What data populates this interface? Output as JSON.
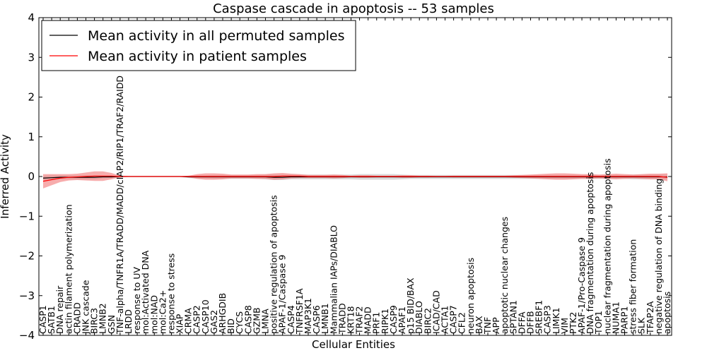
{
  "chart_data": {
    "type": "line",
    "title": "Caspase cascade in apoptosis -- 53 samples",
    "xlabel": "Cellular Entities",
    "ylabel": "Inferred Activity",
    "ylim": [
      -4,
      4
    ],
    "yticks": [
      -4,
      -3,
      -2,
      -1,
      0,
      1,
      2,
      3,
      4
    ],
    "ytick_labels": [
      "−4",
      "−3",
      "−2",
      "−1",
      "0",
      "1",
      "2",
      "3",
      "4"
    ],
    "grid": false,
    "legend_position": "top-left",
    "categories": [
      "CASP1",
      "SATB1",
      "DNA repair",
      "actin filament polymerization",
      "CRADD",
      "JNK cascade",
      "BIRC3",
      "LMNB2",
      "GSN",
      "TNF-alpha/TNFR1A/TRADD/MADD/cIAP2/RIP1/TRAF2/RAIDD",
      "LRDD",
      "response to UV",
      "mol:Activated DNA",
      "mol:NAD",
      "mol:Ca2+",
      "response to stress",
      "XIAP",
      "CRMA",
      "CASP2",
      "CASP10",
      "GAS2",
      "ARHGDIB",
      "BID",
      "CYCS",
      "CASP8",
      "GZMB",
      "LMNA",
      "positive regulation of apoptosis",
      "APAF-1/Caspase 9",
      "CASP4",
      "TNFRSF1A",
      "MAP3K1",
      "CASP6",
      "LMNB1",
      "Mammalian IAPs/DIABLO",
      "TRADD",
      "KRT18",
      "TRAF2",
      "MADD",
      "PRF1",
      "RIPK1",
      "CASP9",
      "APAF1",
      "p15 BID/BAX",
      "DIABLO",
      "BIRC2",
      "ICAD/CAD",
      "ACTA1",
      "CASP7",
      "CFL2",
      "neuron apoptosis",
      "BAX",
      "TNF",
      "APP",
      "apoptotic nuclear changes",
      "SPTAN1",
      "DFFA",
      "DFFB",
      "SREBF1",
      "CASP3",
      "LIMK1",
      "VIM",
      "PTK2",
      "APAF-1/Pro-Caspase 9",
      "DNA fragmentation during apoptosis",
      "TOP1",
      "nuclear fragmentation during apoptosis",
      "NUMA1",
      "PARP1",
      "stress fiber formation",
      "SLK",
      "TFAP2A",
      "negative regulation of DNA binding",
      "apoptosis"
    ],
    "series": [
      {
        "name": "Mean activity in all permuted samples",
        "color": "#000000",
        "band_color": "#c0c0c0",
        "values": [
          -0.04,
          -0.03,
          -0.02,
          -0.02,
          -0.02,
          -0.02,
          -0.02,
          -0.01,
          -0.01,
          0,
          0,
          0,
          0,
          0,
          0,
          0,
          0,
          -0.01,
          -0.01,
          -0.01,
          -0.01,
          -0.01,
          -0.01,
          -0.01,
          -0.01,
          -0.01,
          -0.01,
          -0.02,
          -0.02,
          -0.01,
          -0.01,
          -0.01,
          -0.01,
          -0.01,
          -0.01,
          -0.01,
          -0.01,
          -0.01,
          -0.01,
          -0.01,
          -0.01,
          -0.01,
          -0.01,
          -0.01,
          -0.01,
          -0.01,
          -0.01,
          -0.01,
          -0.01,
          -0.01,
          -0.01,
          -0.01,
          -0.01,
          -0.01,
          -0.01,
          -0.01,
          -0.01,
          -0.01,
          -0.01,
          -0.01,
          -0.01,
          -0.01,
          -0.01,
          -0.01,
          -0.01,
          -0.01,
          -0.01,
          -0.01,
          -0.01,
          -0.01,
          -0.01,
          -0.01,
          -0.01,
          -0.01
        ],
        "spread": [
          0.06,
          0.06,
          0.05,
          0.05,
          0.05,
          0.05,
          0.05,
          0.04,
          0.03,
          0.01,
          0.01,
          0.01,
          0.01,
          0.01,
          0.01,
          0.01,
          0.01,
          0.03,
          0.04,
          0.04,
          0.05,
          0.05,
          0.05,
          0.05,
          0.05,
          0.05,
          0.06,
          0.07,
          0.07,
          0.06,
          0.06,
          0.06,
          0.06,
          0.06,
          0.06,
          0.06,
          0.06,
          0.07,
          0.07,
          0.07,
          0.07,
          0.07,
          0.06,
          0.05,
          0.05,
          0.05,
          0.05,
          0.05,
          0.05,
          0.05,
          0.05,
          0.05,
          0.05,
          0.05,
          0.05,
          0.05,
          0.05,
          0.05,
          0.05,
          0.05,
          0.05,
          0.05,
          0.05,
          0.05,
          0.05,
          0.05,
          0.05,
          0.05,
          0.05,
          0.06,
          0.06,
          0.06,
          0.06,
          0.06
        ]
      },
      {
        "name": "Mean activity in patient samples",
        "color": "#ff0000",
        "band_color": "#f28080",
        "values": [
          -0.12,
          -0.08,
          -0.04,
          -0.02,
          -0.01,
          0,
          0.01,
          0.01,
          0.01,
          0,
          0,
          0,
          0,
          0,
          0,
          0,
          0,
          0,
          0,
          0,
          0,
          0,
          0,
          0,
          0,
          0,
          0,
          0,
          0.01,
          0.01,
          0.01,
          0,
          0,
          0,
          0,
          0,
          0,
          0,
          0,
          0,
          0,
          0,
          0,
          0,
          0,
          0,
          0,
          0,
          0,
          0,
          0,
          0,
          0,
          0,
          0,
          0,
          0,
          0,
          0,
          0,
          0,
          0,
          0,
          0,
          0,
          0,
          0,
          0,
          0,
          0,
          0,
          0,
          0,
          -0.02
        ],
        "spread": [
          0.18,
          0.14,
          0.1,
          0.08,
          0.08,
          0.1,
          0.12,
          0.12,
          0.08,
          0.02,
          0.01,
          0.01,
          0.01,
          0.01,
          0.01,
          0.01,
          0.01,
          0.02,
          0.06,
          0.08,
          0.08,
          0.07,
          0.05,
          0.05,
          0.05,
          0.06,
          0.06,
          0.08,
          0.08,
          0.06,
          0.05,
          0.04,
          0.04,
          0.04,
          0.05,
          0.04,
          0.02,
          0.03,
          0.03,
          0.02,
          0.02,
          0.02,
          0.03,
          0.03,
          0.02,
          0.02,
          0.01,
          0.01,
          0.02,
          0.02,
          0.02,
          0.02,
          0.02,
          0.02,
          0.02,
          0.03,
          0.04,
          0.05,
          0.06,
          0.07,
          0.08,
          0.08,
          0.07,
          0.06,
          0.06,
          0.05,
          0.06,
          0.07,
          0.06,
          0.05,
          0.06,
          0.07,
          0.07,
          0.1
        ]
      }
    ]
  }
}
